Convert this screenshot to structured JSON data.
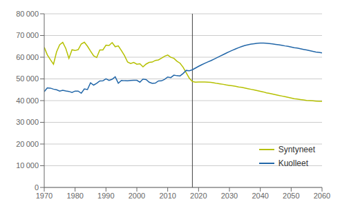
{
  "chart_data": {
    "type": "line",
    "x": [
      1970,
      1971,
      1972,
      1973,
      1974,
      1975,
      1976,
      1977,
      1978,
      1979,
      1980,
      1981,
      1982,
      1983,
      1984,
      1985,
      1986,
      1987,
      1988,
      1989,
      1990,
      1991,
      1992,
      1993,
      1994,
      1995,
      1996,
      1997,
      1998,
      1999,
      2000,
      2001,
      2002,
      2003,
      2004,
      2005,
      2006,
      2007,
      2008,
      2009,
      2010,
      2011,
      2012,
      2013,
      2014,
      2015,
      2016,
      2017,
      2018,
      2019,
      2020,
      2021,
      2022,
      2023,
      2024,
      2025,
      2026,
      2027,
      2028,
      2029,
      2030,
      2031,
      2032,
      2033,
      2034,
      2035,
      2036,
      2037,
      2038,
      2039,
      2040,
      2041,
      2042,
      2043,
      2044,
      2045,
      2046,
      2047,
      2048,
      2049,
      2050,
      2051,
      2052,
      2053,
      2054,
      2055,
      2056,
      2057,
      2058,
      2059,
      2060
    ],
    "series": [
      {
        "name": "Syntyneet",
        "color": "#b5c000",
        "values": [
          64559,
          61067,
          58864,
          56787,
          62473,
          65719,
          66846,
          63975,
          59452,
          63428,
          63064,
          63469,
          66106,
          66892,
          65076,
          62796,
          60632,
          59827,
          63316,
          63348,
          65549,
          65395,
          66731,
          64826,
          65231,
          63067,
          60723,
          57793,
          57108,
          57577,
          56742,
          56989,
          55555,
          56834,
          57616,
          57762,
          58526,
          58729,
          59530,
          60430,
          60980,
          59961,
          59493,
          58134,
          57232,
          55380,
          52814,
          50321,
          48800,
          48500,
          48600,
          48600,
          48600,
          48500,
          48400,
          48200,
          47900,
          47700,
          47500,
          47200,
          47000,
          46800,
          46600,
          46300,
          46100,
          45800,
          45500,
          45200,
          44900,
          44600,
          44300,
          44000,
          43600,
          43300,
          43000,
          42700,
          42400,
          42100,
          41800,
          41500,
          41200,
          40900,
          40700,
          40500,
          40300,
          40100,
          40000,
          39900,
          39800,
          39700,
          39700
        ]
      },
      {
        "name": "Kuolleet",
        "color": "#2166a8",
        "values": [
          44126,
          45876,
          45753,
          45272,
          45007,
          44398,
          44789,
          44474,
          44235,
          43773,
          44398,
          44394,
          43408,
          45388,
          45098,
          48199,
          47135,
          47949,
          49063,
          49107,
          50058,
          49294,
          49844,
          50988,
          48000,
          49280,
          49167,
          49107,
          49262,
          49345,
          49339,
          48500,
          49894,
          49718,
          48471,
          47928,
          48065,
          49077,
          49094,
          49826,
          50887,
          50585,
          51707,
          51471,
          51388,
          52492,
          53923,
          53750,
          54200,
          55000,
          55800,
          56500,
          57200,
          57800,
          58400,
          59100,
          59800,
          60500,
          61200,
          61900,
          62600,
          63200,
          63800,
          64400,
          64900,
          65400,
          65700,
          66000,
          66200,
          66400,
          66500,
          66500,
          66400,
          66300,
          66100,
          65900,
          65700,
          65500,
          65200,
          65000,
          64700,
          64400,
          64200,
          63900,
          63600,
          63300,
          63000,
          62700,
          62400,
          62200,
          62000
        ]
      }
    ],
    "vline": 2018,
    "xlim": [
      1970,
      2060
    ],
    "xticks": [
      1970,
      1980,
      1990,
      2000,
      2010,
      2020,
      2030,
      2040,
      2050,
      2060
    ],
    "ylim": [
      0,
      80000
    ],
    "yticks": [
      0,
      {
        "value": 10000,
        "label": "10 000"
      },
      {
        "value": 20000,
        "label": "20 000"
      },
      {
        "value": 30000,
        "label": "30 000"
      },
      {
        "value": 40000,
        "label": "40 000"
      },
      {
        "value": 50000,
        "label": "50 000"
      },
      {
        "value": 60000,
        "label": "60 000"
      },
      {
        "value": 70000,
        "label": "70 000"
      },
      {
        "value": 80000,
        "label": "80 000"
      }
    ],
    "grid": true,
    "legend": "lower right"
  }
}
